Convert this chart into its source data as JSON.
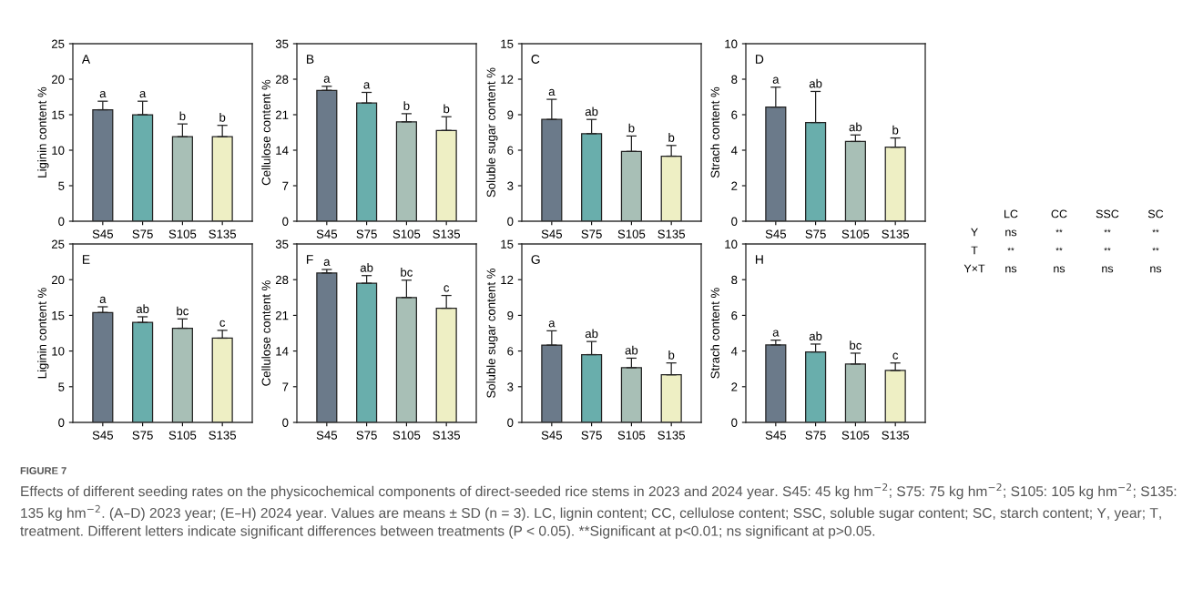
{
  "chart_data": [
    {
      "type": "bar",
      "title": "A",
      "ylabel": "Liginin content %",
      "categories": [
        "S45",
        "S75",
        "S105",
        "S135"
      ],
      "values": [
        15.7,
        15.0,
        11.9,
        11.9
      ],
      "errors": [
        [
          15.7,
          16.9
        ],
        [
          15.0,
          16.9
        ],
        [
          11.9,
          13.7
        ],
        [
          11.9,
          13.5
        ]
      ],
      "value_labels": [
        "a",
        "a",
        "b",
        "b"
      ],
      "colors": [
        "#6b7a8a",
        "#69aeac",
        "#a8bfb6",
        "#eeefc4"
      ],
      "ylim": [
        0,
        25
      ],
      "yticks": [
        0,
        5,
        10,
        15,
        20,
        25
      ],
      "grid": false
    },
    {
      "type": "bar",
      "title": "B",
      "ylabel": "Cellulose content %",
      "categories": [
        "S45",
        "S75",
        "S105",
        "S135"
      ],
      "values": [
        25.8,
        23.3,
        19.6,
        17.9
      ],
      "errors": [
        [
          25.8,
          26.6
        ],
        [
          23.3,
          25.4
        ],
        [
          19.6,
          21.2
        ],
        [
          17.9,
          20.6
        ]
      ],
      "value_labels": [
        "a",
        "a",
        "b",
        "b"
      ],
      "colors": [
        "#6b7a8a",
        "#69aeac",
        "#a8bfb6",
        "#eeefc4"
      ],
      "ylim": [
        0,
        35
      ],
      "yticks": [
        0,
        7,
        14,
        21,
        28,
        35
      ],
      "grid": false
    },
    {
      "type": "bar",
      "title": "C",
      "ylabel": "Soluble sugar content %",
      "categories": [
        "S45",
        "S75",
        "S105",
        "S135"
      ],
      "values": [
        8.6,
        7.4,
        5.9,
        5.5
      ],
      "errors": [
        [
          8.6,
          10.3
        ],
        [
          7.4,
          8.6
        ],
        [
          5.9,
          7.2
        ],
        [
          5.5,
          6.4
        ]
      ],
      "value_labels": [
        "a",
        "ab",
        "b",
        "b"
      ],
      "colors": [
        "#6b7a8a",
        "#69aeac",
        "#a8bfb6",
        "#eeefc4"
      ],
      "ylim": [
        0,
        15
      ],
      "yticks": [
        0,
        3,
        6,
        9,
        12,
        15
      ],
      "grid": false
    },
    {
      "type": "bar",
      "title": "D",
      "ylabel": "Strach content %",
      "categories": [
        "S45",
        "S75",
        "S105",
        "S135"
      ],
      "values": [
        6.43,
        5.56,
        4.49,
        4.17
      ],
      "errors": [
        [
          6.43,
          7.55
        ],
        [
          5.56,
          7.31
        ],
        [
          4.49,
          4.86
        ],
        [
          4.17,
          4.69
        ]
      ],
      "value_labels": [
        "a",
        "ab",
        "ab",
        "b"
      ],
      "colors": [
        "#6b7a8a",
        "#69aeac",
        "#a8bfb6",
        "#eeefc4"
      ],
      "ylim": [
        0,
        10
      ],
      "yticks": [
        0,
        2,
        4,
        6,
        8,
        10
      ],
      "grid": false
    },
    {
      "type": "bar",
      "title": "E",
      "ylabel": "Liginin content %",
      "categories": [
        "S45",
        "S75",
        "S105",
        "S135"
      ],
      "values": [
        15.4,
        14.0,
        13.2,
        11.8
      ],
      "errors": [
        [
          15.4,
          16.2
        ],
        [
          14.0,
          14.8
        ],
        [
          13.2,
          14.5
        ],
        [
          11.8,
          12.9
        ]
      ],
      "value_labels": [
        "a",
        "ab",
        "bc",
        "c"
      ],
      "colors": [
        "#6b7a8a",
        "#69aeac",
        "#a8bfb6",
        "#eeefc4"
      ],
      "ylim": [
        0,
        25
      ],
      "yticks": [
        0,
        5,
        10,
        15,
        20,
        25
      ],
      "grid": false
    },
    {
      "type": "bar",
      "title": "F",
      "ylabel": "Cellulose content %",
      "categories": [
        "S45",
        "S75",
        "S105",
        "S135"
      ],
      "values": [
        29.3,
        27.3,
        24.5,
        22.4
      ],
      "errors": [
        [
          29.3,
          30.0
        ],
        [
          27.3,
          28.8
        ],
        [
          24.5,
          27.9
        ],
        [
          22.4,
          24.9
        ]
      ],
      "value_labels": [
        "a",
        "ab",
        "bc",
        "c"
      ],
      "colors": [
        "#6b7a8a",
        "#69aeac",
        "#a8bfb6",
        "#eeefc4"
      ],
      "ylim": [
        0,
        35
      ],
      "yticks": [
        0,
        7,
        14,
        21,
        28,
        35
      ],
      "grid": false
    },
    {
      "type": "bar",
      "title": "G",
      "ylabel": "Soluble sugar content %",
      "categories": [
        "S45",
        "S75",
        "S105",
        "S135"
      ],
      "values": [
        6.5,
        5.7,
        4.6,
        4.0
      ],
      "errors": [
        [
          6.5,
          7.7
        ],
        [
          5.7,
          6.8
        ],
        [
          4.6,
          5.4
        ],
        [
          4.0,
          5.0
        ]
      ],
      "value_labels": [
        "a",
        "ab",
        "ab",
        "b"
      ],
      "colors": [
        "#6b7a8a",
        "#69aeac",
        "#a8bfb6",
        "#eeefc4"
      ],
      "ylim": [
        0,
        15
      ],
      "yticks": [
        0,
        3,
        6,
        9,
        12,
        15
      ],
      "grid": false
    },
    {
      "type": "bar",
      "title": "H",
      "ylabel": "Strach content %",
      "categories": [
        "S45",
        "S75",
        "S105",
        "S135"
      ],
      "values": [
        4.34,
        3.95,
        3.27,
        2.91
      ],
      "errors": [
        [
          4.34,
          4.61
        ],
        [
          3.95,
          4.39
        ],
        [
          3.27,
          3.88
        ],
        [
          2.91,
          3.33
        ]
      ],
      "value_labels": [
        "a",
        "ab",
        "bc",
        "c"
      ],
      "colors": [
        "#6b7a8a",
        "#69aeac",
        "#a8bfb6",
        "#eeefc4"
      ],
      "ylim": [
        0,
        10
      ],
      "yticks": [
        0,
        2,
        4,
        6,
        8,
        10
      ],
      "grid": false
    },
    {
      "type": "other",
      "categories": [
        "LC",
        "CC",
        "SSC",
        "SC"
      ],
      "y_categories": [
        "Y",
        "T",
        "Y×T"
      ],
      "cell_labels": [
        [
          "ns",
          "**",
          "**",
          "**"
        ],
        [
          "**",
          "**",
          "**",
          "**"
        ],
        [
          "ns",
          "ns",
          "ns",
          "ns"
        ]
      ]
    },
    {
      "type": "other",
      "title": "FIGURE 7",
      "annotations": [
        "Effects of different seeding rates on the physicochemical components of direct-seeded rice stems in 2023 and 2024 year. S45: 45 kg hm$^{−2}$; S75: 75 kg hm$^{−2}$; S105: 105 kg hm$^{−2}$; S135: 135 kg hm$^{−2}$. (A–D) 2023 year; (E–H) 2024 year. Values are means ± SD (n = 3). LC, lignin content; CC, cellulose content; SSC, soluble sugar content; SC, starch content; Y, year; T, treatment. Different letters indicate significant differences between treatments (P < 0.05). **Significant at p<0.01; ns significant at p>0.05."
      ]
    }
  ]
}
